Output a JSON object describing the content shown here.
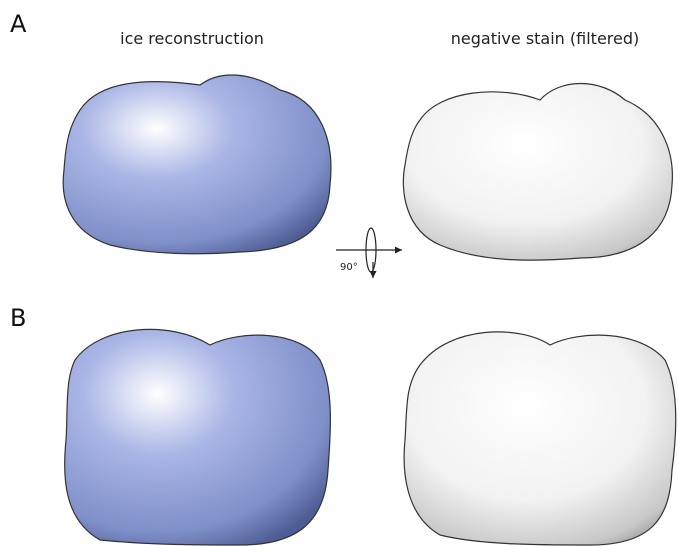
{
  "panels": [
    {
      "label": "A"
    },
    {
      "label": "B"
    }
  ],
  "columns": [
    {
      "title": "ice reconstruction"
    },
    {
      "title": "negative stain (filtered)"
    }
  ],
  "rotation": {
    "label": "90°"
  }
}
